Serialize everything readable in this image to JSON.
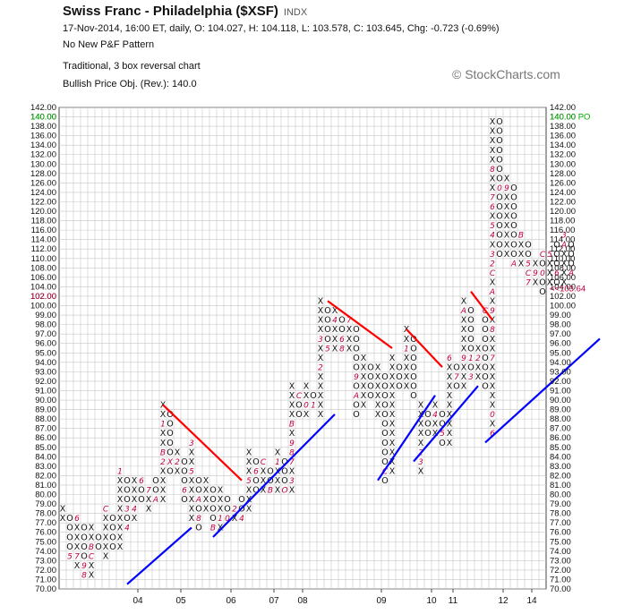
{
  "header": {
    "title": "Swiss Franc - Philadelphia ($XSF)",
    "exchange": "INDX",
    "quote_line": "17-Nov-2014, 16:00 ET, daily, O: 104.027, H: 104.118, L: 103.578, C: 103.645, Chg: -0.723 (-0.69%)",
    "pattern_line": "No New P&F Pattern",
    "chart_type_line": "Traditional, 3 box reversal chart",
    "objective_line": "Bullish Price Obj. (Rev.): 140.0",
    "copyright": "© StockCharts.com"
  },
  "colors": {
    "grid": "#c6c6c6",
    "x_mark": "#111111",
    "o_mark": "#111111",
    "month_mark": "#c0003c",
    "resistance_line": "#ff0000",
    "support_line": "#0000ff",
    "price_objective": "#00aa00",
    "last_price": "#c0003c"
  },
  "chart_data": {
    "type": "point_and_figure",
    "box_size": 1,
    "reversal": 3,
    "ylim": [
      70,
      142
    ],
    "y_ticks": [
      "70.00",
      "71.00",
      "72.00",
      "73.00",
      "74.00",
      "75.00",
      "76.00",
      "77.00",
      "78.00",
      "79.00",
      "80.00",
      "81.00",
      "82.00",
      "83.00",
      "84.00",
      "85.00",
      "86.00",
      "87.00",
      "88.00",
      "89.00",
      "90.00",
      "91.00",
      "92.00",
      "93.00",
      "94.00",
      "95.00",
      "96.00",
      "97.00",
      "98.00",
      "99.00",
      "100.00",
      "102.00",
      "104.00",
      "106.00",
      "108.00",
      "110.00",
      "112.00",
      "114.00",
      "116.00",
      "118.00",
      "120.00",
      "122.00",
      "124.00",
      "126.00",
      "128.00",
      "130.00",
      "132.00",
      "134.00",
      "136.00",
      "138.00",
      "140.00",
      "142.00"
    ],
    "x_labels": [
      {
        "col": 11,
        "label": "04"
      },
      {
        "col": 17,
        "label": "05"
      },
      {
        "col": 24,
        "label": "06"
      },
      {
        "col": 30,
        "label": "07"
      },
      {
        "col": 34,
        "label": "08"
      },
      {
        "col": 45,
        "label": "09"
      },
      {
        "col": 52,
        "label": "10"
      },
      {
        "col": 55,
        "label": "11"
      },
      {
        "col": 62,
        "label": "12"
      },
      {
        "col": 66,
        "label": "14"
      }
    ],
    "price_objective": {
      "value": 140.0,
      "label": "140.00 PO"
    },
    "last_price": {
      "value": 103.64,
      "label": "<<103.64"
    },
    "columns": [
      {
        "type": "X",
        "low": 77,
        "high": 78,
        "marks": {}
      },
      {
        "type": "O",
        "low": 73,
        "high": 77,
        "marks": {
          "73": "5"
        }
      },
      {
        "type": "X",
        "low": 72,
        "high": 77,
        "marks": {
          "73": "7",
          "77": "6"
        }
      },
      {
        "type": "O",
        "low": 71,
        "high": 76,
        "marks": {
          "71": "8",
          "72": "9"
        }
      },
      {
        "type": "X",
        "low": 71,
        "high": 76,
        "marks": {
          "73": "C",
          "74": "B"
        }
      },
      {
        "type": "O",
        "low": 74,
        "high": 75,
        "marks": {}
      },
      {
        "type": "X",
        "low": 73,
        "high": 78,
        "marks": {
          "78": "C"
        }
      },
      {
        "type": "O",
        "low": 74,
        "high": 77,
        "marks": {}
      },
      {
        "type": "X",
        "low": 74,
        "high": 82,
        "marks": {
          "82": "1"
        }
      },
      {
        "type": "O",
        "low": 76,
        "high": 81,
        "marks": {
          "78": "3",
          "76": "4"
        }
      },
      {
        "type": "X",
        "low": 77,
        "high": 81,
        "marks": {
          "78": "4"
        }
      },
      {
        "type": "O",
        "low": 79,
        "high": 81,
        "marks": {
          "81": "6"
        }
      },
      {
        "type": "X",
        "low": 78,
        "high": 80,
        "marks": {
          "80": "7"
        }
      },
      {
        "type": "O",
        "low": 79,
        "high": 81,
        "marks": {
          "79": "A"
        }
      },
      {
        "type": "X",
        "low": 79,
        "high": 89,
        "marks": {
          "87": "1",
          "84": "B",
          "83": "2"
        }
      },
      {
        "type": "O",
        "low": 82,
        "high": 88,
        "marks": {
          "83": "X"
        }
      },
      {
        "type": "X",
        "low": 82,
        "high": 84,
        "marks": {
          "83": "2"
        }
      },
      {
        "type": "O",
        "low": 79,
        "high": 83,
        "marks": {
          "80": "6"
        }
      },
      {
        "type": "X",
        "low": 77,
        "high": 85,
        "marks": {
          "85": "3",
          "82": "5"
        }
      },
      {
        "type": "O",
        "low": 76,
        "high": 81,
        "marks": {
          "79": "A",
          "77": "8"
        }
      },
      {
        "type": "X",
        "low": 78,
        "high": 81,
        "marks": {}
      },
      {
        "type": "O",
        "low": 76,
        "high": 80,
        "marks": {
          "76": "B"
        }
      },
      {
        "type": "X",
        "low": 76,
        "high": 80,
        "marks": {
          "77": "1"
        }
      },
      {
        "type": "O",
        "low": 77,
        "high": 79,
        "marks": {
          "77": "0"
        }
      },
      {
        "type": "X",
        "low": 77,
        "high": 78,
        "marks": {
          "78": "2"
        }
      },
      {
        "type": "O",
        "low": 77,
        "high": 79,
        "marks": {
          "77": "4"
        }
      },
      {
        "type": "X",
        "low": 78,
        "high": 84,
        "marks": {
          "81": "5"
        }
      },
      {
        "type": "O",
        "low": 80,
        "high": 83,
        "marks": {
          "82": "6"
        }
      },
      {
        "type": "X",
        "low": 80,
        "high": 83,
        "marks": {
          "83": "C"
        }
      },
      {
        "type": "O",
        "low": 80,
        "high": 82,
        "marks": {
          "80": "B"
        }
      },
      {
        "type": "X",
        "low": 80,
        "high": 84,
        "marks": {
          "83": "1"
        }
      },
      {
        "type": "O",
        "low": 80,
        "high": 83,
        "marks": {
          "80": "O"
        }
      },
      {
        "type": "X",
        "low": 80,
        "high": 91,
        "marks": {
          "87": "B",
          "85": "9",
          "84": "8",
          "83": "7",
          "81": "3"
        }
      },
      {
        "type": "O",
        "low": 88,
        "high": 90,
        "marks": {
          "90": "C"
        }
      },
      {
        "type": "X",
        "low": 88,
        "high": 91,
        "marks": {
          "89": "0"
        }
      },
      {
        "type": "O",
        "low": 89,
        "high": 90,
        "marks": {
          "89": "1"
        }
      },
      {
        "type": "X",
        "low": 88,
        "high": 100,
        "marks": {
          "96": "3",
          "93": "2"
        }
      },
      {
        "type": "O",
        "low": 95,
        "high": 99,
        "marks": {
          "95": "5"
        }
      },
      {
        "type": "X",
        "low": 95,
        "high": 99,
        "marks": {
          "98": "4"
        }
      },
      {
        "type": "O",
        "low": 95,
        "high": 98,
        "marks": {
          "95": "8",
          "96": "6"
        }
      },
      {
        "type": "X",
        "low": 95,
        "high": 98,
        "marks": {
          "98": "7"
        }
      },
      {
        "type": "O",
        "low": 88,
        "high": 97,
        "marks": {
          "92": "9",
          "90": "A"
        }
      },
      {
        "type": "X",
        "low": 89,
        "high": 94,
        "marks": {}
      },
      {
        "type": "O",
        "low": 90,
        "high": 93,
        "marks": {}
      },
      {
        "type": "X",
        "low": 88,
        "high": 93,
        "marks": {
          "87": "A",
          "85": "B"
        }
      },
      {
        "type": "O",
        "low": 81,
        "high": 92,
        "marks": {
          "82": "C"
        }
      },
      {
        "type": "X",
        "low": 82,
        "high": 94,
        "marks": {}
      },
      {
        "type": "O",
        "low": 91,
        "high": 93,
        "marks": {}
      },
      {
        "type": "X",
        "low": 91,
        "high": 97,
        "marks": {
          "95": "1"
        }
      },
      {
        "type": "O",
        "low": 90,
        "high": 96,
        "marks": {}
      },
      {
        "type": "X",
        "low": 82,
        "high": 89,
        "marks": {
          "84": "2",
          "83": "3"
        }
      },
      {
        "type": "O",
        "low": 86,
        "high": 88,
        "marks": {}
      },
      {
        "type": "X",
        "low": 86,
        "high": 89,
        "marks": {
          "88": "4"
        }
      },
      {
        "type": "O",
        "low": 85,
        "high": 88,
        "marks": {
          "86": "5"
        }
      },
      {
        "type": "X",
        "low": 85,
        "high": 94,
        "marks": {
          "94": "6"
        }
      },
      {
        "type": "O",
        "low": 91,
        "high": 93,
        "marks": {
          "92": "7"
        }
      },
      {
        "type": "X",
        "low": 91,
        "high": 101,
        "marks": {
          "101": "B",
          "99": "A",
          "94": "9"
        }
      },
      {
        "type": "O",
        "low": 92,
        "high": 99,
        "marks": {
          "94": "1",
          "92": "3"
        }
      },
      {
        "type": "X",
        "low": 92,
        "high": 95,
        "marks": {
          "94": "2"
        }
      },
      {
        "type": "O",
        "low": 91,
        "high": 99,
        "marks": {
          "99": "C"
        }
      },
      {
        "type": "X",
        "low": 86,
        "high": 139,
        "marks": {
          "128": "8",
          "122": "7",
          "120": "6",
          "116": "5",
          "114": "4",
          "110": "3",
          "108": "2",
          "106": "C",
          "102": "A",
          "99": "9",
          "97": "8",
          "94": "7",
          "88": "0",
          "86": "6"
        }
      },
      {
        "type": "O",
        "low": 110,
        "high": 138,
        "marks": {
          "124": "0"
        }
      },
      {
        "type": "X",
        "low": 110,
        "high": 126,
        "marks": {
          "124": "9"
        }
      },
      {
        "type": "O",
        "low": 108,
        "high": 124,
        "marks": {
          "108": "A"
        }
      },
      {
        "type": "X",
        "low": 108,
        "high": 114,
        "marks": {
          "114": "B"
        }
      },
      {
        "type": "O",
        "low": 104,
        "high": 112,
        "marks": {
          "104": "7",
          "106": "C",
          "108": "5"
        }
      },
      {
        "type": "X",
        "low": 104,
        "high": 108,
        "marks": {
          "106": "9"
        }
      },
      {
        "type": "O",
        "low": 102,
        "high": 110,
        "marks": {
          "110": "C",
          "106": "0"
        }
      },
      {
        "type": "X",
        "low": 104,
        "high": 110,
        "marks": {
          "110": "5"
        }
      },
      {
        "type": "O",
        "low": 104,
        "high": 112,
        "marks": {
          "106": "6"
        }
      },
      {
        "type": "X",
        "low": 104,
        "high": 114,
        "marks": {
          "114": "3",
          "112": "A"
        }
      },
      {
        "type": "O",
        "low": 106,
        "high": 112,
        "marks": {
          "106": "A"
        }
      }
    ],
    "trend_lines": [
      {
        "kind": "resistance",
        "from": [
          14,
          89
        ],
        "to": [
          25,
          81
        ]
      },
      {
        "kind": "resistance",
        "from": [
          37,
          100
        ],
        "to": [
          46,
          95
        ]
      },
      {
        "kind": "resistance",
        "from": [
          48,
          97
        ],
        "to": [
          53,
          93
        ]
      },
      {
        "kind": "resistance",
        "from": [
          57,
          102
        ],
        "to": [
          60,
          98
        ]
      },
      {
        "kind": "support",
        "from": [
          9,
          70
        ],
        "to": [
          18,
          76
        ]
      },
      {
        "kind": "support",
        "from": [
          21,
          75
        ],
        "to": [
          38,
          88
        ]
      },
      {
        "kind": "support",
        "from": [
          44,
          81
        ],
        "to": [
          52,
          90
        ]
      },
      {
        "kind": "support",
        "from": [
          49,
          83
        ],
        "to": [
          58,
          91
        ]
      },
      {
        "kind": "support",
        "from": [
          59,
          85
        ],
        "to": [
          75,
          96
        ]
      }
    ]
  }
}
